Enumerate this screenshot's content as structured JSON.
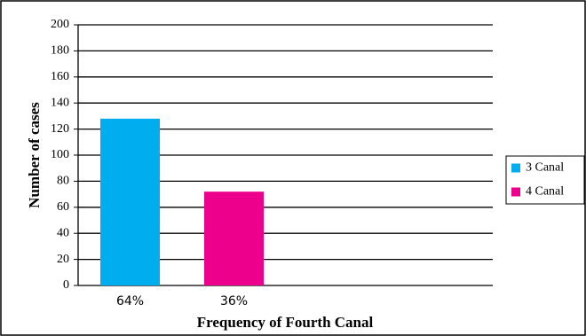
{
  "chart_data": {
    "type": "bar",
    "x_label": "Frequency of Fourth Canal",
    "y_label": "Number of cases",
    "categories": [
      "64%",
      "36%"
    ],
    "series": [
      {
        "name": "3 Canal",
        "color": "#00aeef",
        "values": [
          128,
          null
        ]
      },
      {
        "name": "4 Canal",
        "color": "#ec008c",
        "values": [
          null,
          72
        ]
      }
    ],
    "ylim": [
      0,
      200
    ],
    "yticks": [
      0,
      20,
      40,
      60,
      80,
      100,
      120,
      140,
      160,
      180,
      200
    ],
    "grid": true,
    "legend": "right"
  }
}
